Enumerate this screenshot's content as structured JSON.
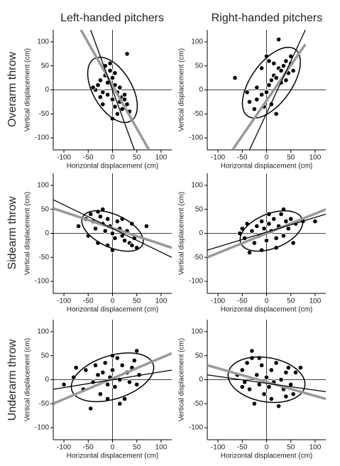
{
  "columns": [
    "Left-handed pitchers",
    "Right-handed pitchers"
  ],
  "rows": [
    "Overarm throw",
    "Sidearm throw",
    "Underarm throw"
  ],
  "chart_data": [
    {
      "type": "scatter",
      "xlabel": "Horizontal displacement (cm)",
      "ylabel": "Vertical displacement (cm)",
      "color": "#000000",
      "x": [
        -30,
        -25,
        -20,
        -15,
        -10,
        -5,
        0,
        5,
        10,
        15,
        20,
        25,
        30,
        -35,
        -20,
        -10,
        0,
        5,
        10,
        20,
        35,
        -5,
        5,
        -15,
        30,
        -25,
        15,
        0,
        25,
        -40
      ],
      "y": [
        10,
        20,
        -5,
        30,
        15,
        40,
        25,
        10,
        -5,
        5,
        -15,
        -20,
        -30,
        0,
        -30,
        -10,
        -20,
        -35,
        -50,
        -40,
        -45,
        55,
        35,
        50,
        75,
        -15,
        -25,
        -60,
        -10,
        5
      ],
      "xlim": [
        -122,
        122
      ],
      "ylim": [
        -125,
        125
      ],
      "xticks": [
        -100,
        -50,
        0,
        50,
        100
      ],
      "yticks": [
        -100,
        -50,
        0,
        50,
        100
      ],
      "lines": [
        {
          "color": "#999999",
          "x": [
            -65,
            75
          ],
          "y": [
            125,
            -125
          ]
        },
        {
          "color": "#000000",
          "x": [
            -45,
            45
          ],
          "y": [
            125,
            -125
          ]
        }
      ],
      "ellipse": {
        "cx": 0,
        "cy": 0,
        "rx": 75,
        "ry": 40,
        "angle": -60
      }
    },
    {
      "type": "scatter",
      "xlabel": "Horizontal displacement (cm)",
      "ylabel": "Vertical displacement (cm)",
      "color": "#000000",
      "x": [
        -65,
        -40,
        -35,
        -25,
        -20,
        -10,
        0,
        5,
        10,
        15,
        20,
        25,
        30,
        35,
        40,
        45,
        50,
        55,
        5,
        0,
        -10,
        25,
        20,
        10,
        -5,
        30,
        40,
        15,
        -20,
        50
      ],
      "y": [
        25,
        -5,
        -25,
        -40,
        5,
        -10,
        -5,
        10,
        20,
        30,
        25,
        45,
        40,
        50,
        60,
        35,
        55,
        40,
        60,
        70,
        45,
        105,
        -50,
        -30,
        -35,
        15,
        20,
        55,
        -20,
        70
      ],
      "xlim": [
        -122,
        122
      ],
      "ylim": [
        -125,
        125
      ],
      "xticks": [
        -100,
        -50,
        0,
        50,
        100
      ],
      "yticks": [
        -100,
        -50,
        0,
        50,
        100
      ],
      "lines": [
        {
          "color": "#999999",
          "x": [
            -70,
            80
          ],
          "y": [
            -125,
            95
          ]
        },
        {
          "color": "#000000",
          "x": [
            -35,
            80
          ],
          "y": [
            -125,
            125
          ]
        }
      ],
      "ellipse": {
        "cx": 10,
        "cy": 15,
        "rx": 85,
        "ry": 42,
        "angle": 55
      }
    },
    {
      "type": "scatter",
      "xlabel": "Horizontal displacement (cm)",
      "ylabel": "Vertical displacement (cm)",
      "color": "#000000",
      "x": [
        -70,
        -55,
        -45,
        -40,
        -35,
        -30,
        -25,
        -20,
        -15,
        -10,
        -5,
        0,
        5,
        10,
        15,
        20,
        25,
        30,
        35,
        40,
        45,
        50,
        -50,
        -30,
        -10,
        20,
        40,
        70,
        -20,
        0
      ],
      "y": [
        15,
        30,
        40,
        25,
        10,
        45,
        35,
        20,
        5,
        30,
        15,
        0,
        -10,
        25,
        10,
        -5,
        -15,
        5,
        -20,
        -25,
        -10,
        -30,
        -5,
        -20,
        -25,
        30,
        20,
        15,
        50,
        -35
      ],
      "xlim": [
        -122,
        122
      ],
      "ylim": [
        -125,
        125
      ],
      "xticks": [
        -100,
        -50,
        0,
        50,
        100
      ],
      "yticks": [
        -100,
        -50,
        0,
        50,
        100
      ],
      "lines": [
        {
          "color": "#999999",
          "x": [
            -122,
            122
          ],
          "y": [
            52,
            -30
          ]
        },
        {
          "color": "#000000",
          "x": [
            -122,
            122
          ],
          "y": [
            70,
            -50
          ]
        }
      ],
      "ellipse": {
        "cx": 0,
        "cy": 5,
        "rx": 68,
        "ry": 34,
        "angle": -25
      }
    },
    {
      "type": "scatter",
      "xlabel": "Horizontal displacement (cm)",
      "ylabel": "Vertical displacement (cm)",
      "color": "#000000",
      "x": [
        -55,
        -50,
        -45,
        -40,
        -35,
        -30,
        -25,
        -20,
        -15,
        -10,
        -5,
        0,
        5,
        10,
        15,
        20,
        25,
        30,
        35,
        40,
        45,
        50,
        55,
        60,
        75,
        100,
        20,
        -10,
        35,
        5
      ],
      "y": [
        0,
        10,
        -10,
        20,
        -40,
        5,
        -20,
        15,
        -5,
        25,
        10,
        -15,
        20,
        5,
        30,
        -10,
        15,
        40,
        50,
        25,
        10,
        30,
        -20,
        20,
        25,
        25,
        -30,
        -35,
        -5,
        40
      ],
      "xlim": [
        -122,
        122
      ],
      "ylim": [
        -125,
        125
      ],
      "xticks": [
        -100,
        -50,
        0,
        50,
        100
      ],
      "yticks": [
        -100,
        -50,
        0,
        50,
        100
      ],
      "lines": [
        {
          "color": "#999999",
          "x": [
            -122,
            122
          ],
          "y": [
            -50,
            50
          ]
        },
        {
          "color": "#000000",
          "x": [
            -122,
            122
          ],
          "y": [
            -35,
            40
          ]
        }
      ],
      "ellipse": {
        "cx": 10,
        "cy": 5,
        "rx": 68,
        "ry": 36,
        "angle": 22
      }
    },
    {
      "type": "scatter",
      "xlabel": "Horizontal displacement (cm)",
      "ylabel": "Vertical displacement (cm)",
      "color": "#000000",
      "x": [
        -100,
        -80,
        -75,
        -60,
        -55,
        -45,
        -40,
        -35,
        -30,
        -25,
        -20,
        -15,
        -10,
        -5,
        0,
        5,
        10,
        15,
        20,
        25,
        30,
        35,
        40,
        45,
        50,
        55,
        50,
        15,
        -10,
        0
      ],
      "y": [
        -10,
        5,
        25,
        -20,
        20,
        -60,
        -5,
        30,
        10,
        -30,
        15,
        35,
        -10,
        5,
        20,
        -15,
        45,
        0,
        30,
        -40,
        15,
        -5,
        25,
        40,
        -10,
        10,
        60,
        -50,
        -40,
        50
      ],
      "xlim": [
        -122,
        122
      ],
      "ylim": [
        -125,
        125
      ],
      "xticks": [
        -100,
        -50,
        0,
        50,
        100
      ],
      "yticks": [
        -100,
        -50,
        0,
        50,
        100
      ],
      "lines": [
        {
          "color": "#999999",
          "x": [
            -122,
            122
          ],
          "y": [
            -50,
            55
          ]
        },
        {
          "color": "#000000",
          "x": [
            -122,
            122
          ],
          "y": [
            -20,
            20
          ]
        }
      ],
      "ellipse": {
        "cx": 0,
        "cy": 5,
        "rx": 88,
        "ry": 45,
        "angle": 18
      }
    },
    {
      "type": "scatter",
      "xlabel": "Horizontal displacement (cm)",
      "ylabel": "Vertical displacement (cm)",
      "color": "#000000",
      "x": [
        -60,
        -50,
        -45,
        -40,
        -35,
        -30,
        -25,
        -20,
        -15,
        -10,
        -5,
        0,
        5,
        10,
        15,
        20,
        25,
        30,
        35,
        40,
        45,
        50,
        55,
        60,
        70,
        -30,
        -15,
        10,
        40,
        -50
      ],
      "y": [
        10,
        20,
        -5,
        35,
        -20,
        45,
        -50,
        10,
        -10,
        30,
        -30,
        5,
        -15,
        20,
        -5,
        35,
        -55,
        0,
        -20,
        15,
        25,
        -10,
        -30,
        15,
        25,
        60,
        45,
        -40,
        -35,
        -15
      ],
      "xlim": [
        -122,
        122
      ],
      "ylim": [
        -125,
        125
      ],
      "xticks": [
        -100,
        -50,
        0,
        50,
        100
      ],
      "yticks": [
        -100,
        -50,
        0,
        50,
        100
      ],
      "lines": [
        {
          "color": "#999999",
          "x": [
            -122,
            122
          ],
          "y": [
            30,
            -40
          ]
        },
        {
          "color": "#000000",
          "x": [
            -122,
            122
          ],
          "y": [
            10,
            -25
          ]
        }
      ],
      "ellipse": {
        "cx": 0,
        "cy": 0,
        "rx": 80,
        "ry": 46,
        "angle": -10
      }
    }
  ]
}
